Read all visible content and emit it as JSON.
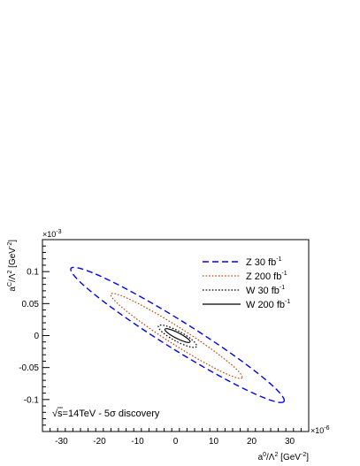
{
  "chart_data": {
    "type": "line",
    "title": "",
    "xlabel_main": "a",
    "xlabel_sup": "0",
    "xlabel_mid": "/Λ",
    "xlabel_sup2": "2",
    "xlabel_unit": " [GeV",
    "xlabel_unit_sup": "-2",
    "xlabel_unit_end": "]",
    "ylabel_main": "a",
    "ylabel_sup": "C",
    "ylabel_mid": "/Λ",
    "ylabel_sup2": "2",
    "ylabel_unit": " [GeV",
    "ylabel_unit_sup": "-2",
    "ylabel_unit_end": "]",
    "x_multiplier_base": "×10",
    "x_multiplier_exp": "-6",
    "y_multiplier_base": "×10",
    "y_multiplier_exp": "-3",
    "xlim": [
      -35,
      35
    ],
    "ylim": [
      -0.15,
      0.15
    ],
    "x_ticks": [
      -30,
      -20,
      -10,
      0,
      10,
      20,
      30
    ],
    "x_tick_labels": [
      "-30",
      "-20",
      "-10",
      "0",
      "10",
      "20",
      "30"
    ],
    "y_ticks": [
      -0.1,
      -0.05,
      0,
      0.05,
      0.1
    ],
    "y_tick_labels": [
      "-0.1",
      "-0.05",
      "0",
      "0.05",
      "0.1"
    ],
    "grid": false,
    "legend_position": "top-right",
    "annotation": "√s=14TeV - 5σ discovery",
    "annotation_radical": "√",
    "annotation_body": "s=14TeV - 5σ discovery",
    "series": [
      {
        "name": "Z 30 fb⁻¹",
        "label_main": "Z  30 fb",
        "label_sup": "-1",
        "color": "#0000ff",
        "style": "dashed",
        "shape": "ellipse",
        "center": [
          0.5,
          0.0
        ],
        "extreme_points": [
          [
            -27.5,
            0.105
          ],
          [
            28.5,
            -0.103
          ]
        ],
        "half_width_y": 0.026
      },
      {
        "name": "Z 200 fb⁻¹",
        "label_main": "Z  200 fb",
        "label_sup": "-1",
        "color": "#cc4400",
        "style": "dotted",
        "shape": "ellipse",
        "center": [
          0.5,
          0.0
        ],
        "extreme_points": [
          [
            -17,
            0.065
          ],
          [
            17.5,
            -0.066
          ]
        ],
        "half_width_y": 0.016
      },
      {
        "name": "W 30 fb⁻¹",
        "label_main": "W 30 fb",
        "label_sup": "-1",
        "color": "#000000",
        "style": "dotted",
        "shape": "ellipse",
        "center": [
          0.5,
          0.0
        ],
        "extreme_points": [
          [
            -4.5,
            0.015
          ],
          [
            5.5,
            -0.017
          ]
        ],
        "half_width_y": 0.009
      },
      {
        "name": "W 200 fb⁻¹",
        "label_main": "W 200 fb",
        "label_sup": "-1",
        "color": "#000000",
        "style": "solid",
        "shape": "ellipse",
        "center": [
          0.5,
          0.0
        ],
        "extreme_points": [
          [
            -2.8,
            0.01
          ],
          [
            3.8,
            -0.01
          ]
        ],
        "half_width_y": 0.005
      }
    ]
  }
}
